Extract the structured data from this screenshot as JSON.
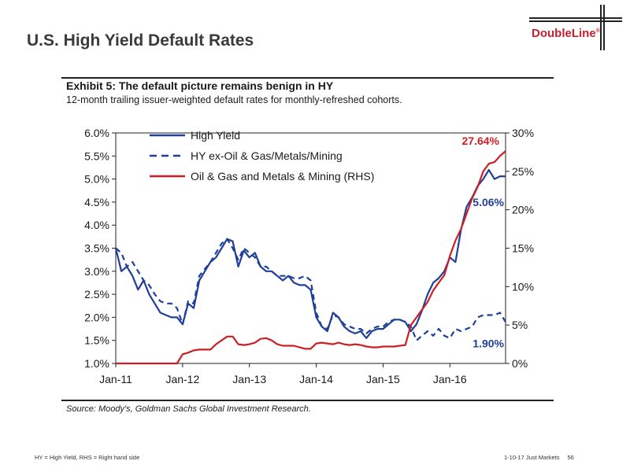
{
  "slide": {
    "title": "U.S. High Yield Default Rates",
    "logo": "DoubleLine",
    "logo_mark": "®",
    "footnote": "HY = High Yield, RHS = Right hand side",
    "footer_text": "1-10-17 Just Markets",
    "page_number": "56"
  },
  "exhibit": {
    "title": "Exhibit 5: The default picture remains benign in HY",
    "subtitle": "12-month trailing issuer-weighted default rates for monthly-refreshed cohorts.",
    "source": "Source: Moody's, Goldman Sachs Global Investment Research."
  },
  "colors": {
    "blue": "#1f3f9a",
    "red": "#cc1f24",
    "label_blue": "#1f3f9a",
    "label_red": "#cc1f24"
  },
  "chart_data": {
    "type": "line",
    "x": [
      "2011-01",
      "2011-02",
      "2011-03",
      "2011-04",
      "2011-05",
      "2011-06",
      "2011-07",
      "2011-08",
      "2011-09",
      "2011-10",
      "2011-11",
      "2011-12",
      "2012-01",
      "2012-02",
      "2012-03",
      "2012-04",
      "2012-05",
      "2012-06",
      "2012-07",
      "2012-08",
      "2012-09",
      "2012-10",
      "2012-11",
      "2012-12",
      "2013-01",
      "2013-02",
      "2013-03",
      "2013-04",
      "2013-05",
      "2013-06",
      "2013-07",
      "2013-08",
      "2013-09",
      "2013-10",
      "2013-11",
      "2013-12",
      "2014-01",
      "2014-02",
      "2014-03",
      "2014-04",
      "2014-05",
      "2014-06",
      "2014-07",
      "2014-08",
      "2014-09",
      "2014-10",
      "2014-11",
      "2014-12",
      "2015-01",
      "2015-02",
      "2015-03",
      "2015-04",
      "2015-05",
      "2015-06",
      "2015-07",
      "2015-08",
      "2015-09",
      "2015-10",
      "2015-11",
      "2015-12",
      "2016-01",
      "2016-02",
      "2016-03",
      "2016-04",
      "2016-05",
      "2016-06",
      "2016-07",
      "2016-08",
      "2016-09",
      "2016-10",
      "2016-11"
    ],
    "x_ticks": [
      "Jan-11",
      "Jan-12",
      "Jan-13",
      "Jan-14",
      "Jan-15",
      "Jan-16"
    ],
    "y_left": {
      "min": 1.0,
      "max": 6.0,
      "ticks": [
        "1.0%",
        "1.5%",
        "2.0%",
        "2.5%",
        "3.0%",
        "3.5%",
        "4.0%",
        "4.5%",
        "5.0%",
        "5.5%",
        "6.0%"
      ]
    },
    "y_right": {
      "min": 0,
      "max": 30,
      "ticks": [
        "0%",
        "5%",
        "10%",
        "15%",
        "20%",
        "25%",
        "30%"
      ]
    },
    "legend_position": "top-left",
    "grid": false,
    "series": [
      {
        "name": "High Yield",
        "axis": "left",
        "style": "solid",
        "color": "#1f3f9a",
        "values": [
          3.5,
          3.0,
          3.1,
          2.9,
          2.6,
          2.8,
          2.5,
          2.3,
          2.1,
          2.05,
          2.0,
          2.0,
          1.85,
          2.3,
          2.2,
          2.8,
          3.0,
          3.2,
          3.3,
          3.5,
          3.7,
          3.65,
          3.1,
          3.45,
          3.3,
          3.4,
          3.1,
          3.0,
          3.0,
          2.9,
          2.8,
          2.9,
          2.75,
          2.7,
          2.7,
          2.6,
          2.0,
          1.8,
          1.7,
          2.1,
          2.0,
          1.8,
          1.7,
          1.65,
          1.7,
          1.55,
          1.7,
          1.75,
          1.75,
          1.85,
          1.95,
          1.95,
          1.9,
          1.7,
          1.85,
          2.15,
          2.5,
          2.75,
          2.85,
          3.0,
          3.3,
          3.2,
          3.9,
          4.4,
          4.6,
          4.85,
          5.0,
          5.2,
          5.0,
          5.06,
          5.06
        ]
      },
      {
        "name": "HY ex-Oil & Gas/Metals/Mining",
        "axis": "left",
        "style": "dashed",
        "color": "#1f3f9a",
        "values": [
          3.5,
          3.4,
          3.1,
          3.2,
          3.0,
          2.8,
          2.7,
          2.5,
          2.35,
          2.3,
          2.3,
          2.2,
          1.85,
          2.35,
          2.3,
          2.9,
          3.05,
          3.2,
          3.4,
          3.6,
          3.7,
          3.5,
          3.25,
          3.5,
          3.4,
          3.3,
          3.1,
          3.1,
          3.0,
          2.9,
          2.9,
          2.9,
          2.85,
          2.85,
          2.9,
          2.8,
          2.1,
          1.8,
          1.75,
          2.05,
          2.0,
          1.85,
          1.8,
          1.75,
          1.75,
          1.65,
          1.75,
          1.8,
          1.8,
          1.9,
          1.95,
          1.95,
          1.9,
          1.8,
          1.5,
          1.6,
          1.7,
          1.6,
          1.75,
          1.6,
          1.55,
          1.75,
          1.7,
          1.75,
          1.8,
          2.0,
          2.05,
          2.05,
          2.05,
          2.1,
          1.9
        ]
      },
      {
        "name": "Oil & Gas and Metals & Mining (RHS)",
        "axis": "right",
        "style": "solid",
        "color": "#cc1f24",
        "values": [
          0,
          0,
          0,
          0,
          0,
          0,
          0,
          0,
          0,
          0,
          0,
          0,
          1.2,
          1.4,
          1.7,
          1.8,
          1.8,
          1.8,
          2.5,
          3.0,
          3.5,
          3.5,
          2.5,
          2.4,
          2.5,
          2.7,
          3.2,
          3.3,
          3.0,
          2.5,
          2.3,
          2.3,
          2.3,
          2.1,
          1.9,
          1.9,
          2.6,
          2.7,
          2.6,
          2.5,
          2.7,
          2.5,
          2.4,
          2.5,
          2.4,
          2.2,
          2.1,
          2.1,
          2.2,
          2.2,
          2.2,
          2.3,
          2.4,
          5.0,
          6.0,
          7.0,
          8.0,
          9.5,
          10.5,
          11.5,
          14.0,
          16.0,
          17.5,
          19.5,
          21.5,
          23.0,
          25.0,
          26.0,
          26.2,
          27.0,
          27.64
        ]
      }
    ],
    "annotations": [
      {
        "text": "27.64%",
        "color": "#cc1f24"
      },
      {
        "text": "5.06%",
        "color": "#1f3f9a"
      },
      {
        "text": "1.90%",
        "color": "#1f3f9a"
      }
    ]
  }
}
